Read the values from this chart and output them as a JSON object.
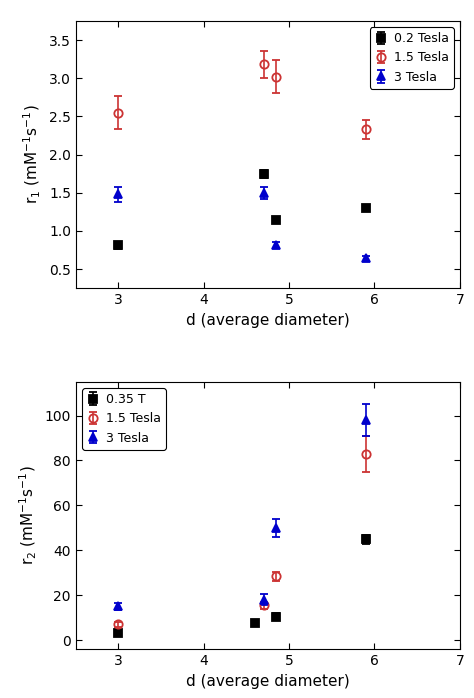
{
  "top_panel": {
    "ylabel": "r$_1$ (mM$^{-1}$s$^{-1}$)",
    "xlabel": "d (average diameter)",
    "xlim": [
      2.5,
      7.0
    ],
    "ylim": [
      0.25,
      3.75
    ],
    "yticks": [
      0.5,
      1.0,
      1.5,
      2.0,
      2.5,
      3.0,
      3.5
    ],
    "xticks": [
      3,
      4,
      5,
      6,
      7
    ],
    "legend_loc": "upper right",
    "series": [
      {
        "label": "0.2 Tesla",
        "color": "#000000",
        "marker": "s",
        "x": [
          3.0,
          4.7,
          4.85,
          5.9
        ],
        "y": [
          0.81,
          1.75,
          1.15,
          1.3
        ],
        "yerr": [
          0.04,
          0.05,
          0.03,
          0.03
        ],
        "open": false
      },
      {
        "label": "1.5 Tesla",
        "color": "#cc3333",
        "marker": "o",
        "x": [
          3.0,
          4.7,
          4.85,
          5.9
        ],
        "y": [
          2.55,
          3.18,
          3.02,
          2.33
        ],
        "yerr": [
          0.22,
          0.18,
          0.22,
          0.12
        ],
        "open": true
      },
      {
        "label": "3 Tesla",
        "color": "#0000cc",
        "marker": "^",
        "x": [
          3.0,
          4.7,
          4.85,
          5.9
        ],
        "y": [
          1.48,
          1.5,
          0.82,
          0.64
        ],
        "yerr": [
          0.1,
          0.08,
          0.04,
          0.03
        ],
        "open": false
      }
    ]
  },
  "bottom_panel": {
    "ylabel": "r$_2$ (mM$^{-1}$s$^{-1}$)",
    "xlabel": "d (average diameter)",
    "xlim": [
      2.5,
      7.0
    ],
    "ylim": [
      -4,
      115
    ],
    "yticks": [
      0,
      20,
      40,
      60,
      80,
      100
    ],
    "xticks": [
      3,
      4,
      5,
      6,
      7
    ],
    "legend_loc": "upper left",
    "series": [
      {
        "label": "0.35 T",
        "color": "#000000",
        "marker": "s",
        "x": [
          3.0,
          4.6,
          4.85,
          5.9
        ],
        "y": [
          3.0,
          7.5,
          10.5,
          45.0
        ],
        "yerr": [
          0.5,
          0.5,
          1.5,
          2.0
        ],
        "open": false
      },
      {
        "label": "1.5 Tesla",
        "color": "#cc3333",
        "marker": "o",
        "x": [
          3.0,
          4.7,
          4.85,
          5.9
        ],
        "y": [
          7.0,
          15.5,
          28.5,
          83.0
        ],
        "yerr": [
          1.0,
          1.5,
          2.0,
          8.0
        ],
        "open": true
      },
      {
        "label": "3 Tesla",
        "color": "#0000cc",
        "marker": "^",
        "x": [
          3.0,
          4.7,
          4.85,
          5.9
        ],
        "y": [
          15.0,
          18.0,
          50.0,
          98.0
        ],
        "yerr": [
          1.5,
          2.5,
          4.0,
          7.0
        ],
        "open": false
      }
    ]
  },
  "figsize": [
    4.74,
    6.98
  ],
  "dpi": 100,
  "tick_labelsize": 10,
  "axis_labelsize": 11,
  "legend_fontsize": 9,
  "marker_size": 6,
  "elinewidth": 1.2,
  "capsize": 3,
  "bg_color": "#ffffff"
}
